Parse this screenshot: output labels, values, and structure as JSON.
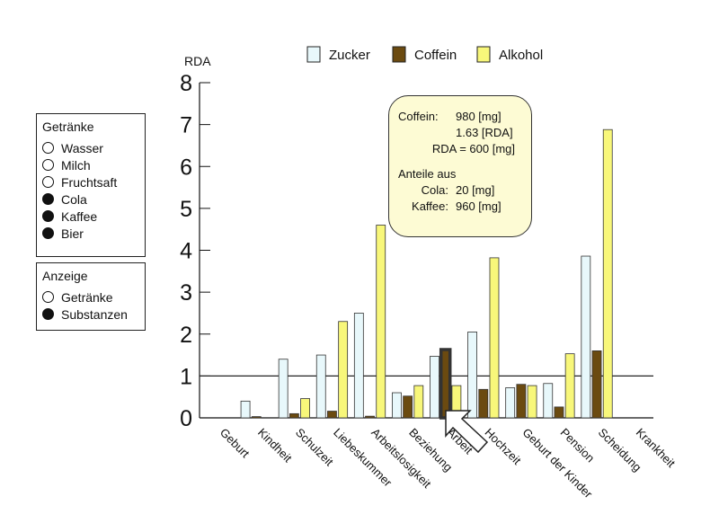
{
  "chart_data": {
    "type": "bar",
    "ylabel": "RDA",
    "ylim": [
      0,
      8
    ],
    "yticks": [
      "0",
      "1",
      "2",
      "3",
      "4",
      "5",
      "6",
      "7",
      "8"
    ],
    "reference_line": 1,
    "categories": [
      "Geburt",
      "Kindheit",
      "Schulzeit",
      "Liebeskummer",
      "Arbeitslosigkeit",
      "Beziehung",
      "Arbeit",
      "Hochzeit",
      "Geburt der Kinder",
      "Pension",
      "Scheidung",
      "Krankheit"
    ],
    "series": [
      {
        "name": "Zucker",
        "color": "#e8f8fb",
        "values": [
          0,
          0.4,
          1.4,
          1.5,
          2.5,
          0.6,
          1.47,
          2.05,
          0.72,
          0.82,
          3.86,
          0
        ]
      },
      {
        "name": "Coffein",
        "color": "#6b4a10",
        "values": [
          0,
          0.03,
          0.1,
          0.16,
          0.04,
          0.52,
          1.63,
          0.68,
          0.8,
          0.26,
          1.6,
          0
        ]
      },
      {
        "name": "Alkohol",
        "color": "#f8f77a",
        "values": [
          0,
          0,
          0.46,
          2.3,
          4.6,
          0.77,
          0.77,
          3.82,
          0.77,
          1.53,
          6.88,
          0
        ]
      }
    ],
    "highlight": {
      "category": "Arbeit",
      "series": "Coffein"
    }
  },
  "tooltip": {
    "line1_key": "Coffein:",
    "line1_val": "980 [mg]",
    "line2_val": "1.63 [RDA]",
    "line3": "RDA = 600 [mg]",
    "line4": "Anteile aus",
    "line5_key": "Cola:",
    "line5_val": "20 [mg]",
    "line6_key": "Kaffee:",
    "line6_val": "960 [mg]"
  },
  "drinks_panel": {
    "title": "Getränke",
    "items": [
      {
        "label": "Wasser",
        "selected": false
      },
      {
        "label": "Milch",
        "selected": false
      },
      {
        "label": "Fruchtsaft",
        "selected": false
      },
      {
        "label": "Cola",
        "selected": true
      },
      {
        "label": "Kaffee",
        "selected": true
      },
      {
        "label": "Bier",
        "selected": true
      }
    ]
  },
  "display_panel": {
    "title": "Anzeige",
    "items": [
      {
        "label": "Getränke",
        "selected": false
      },
      {
        "label": "Substanzen",
        "selected": true
      }
    ]
  }
}
